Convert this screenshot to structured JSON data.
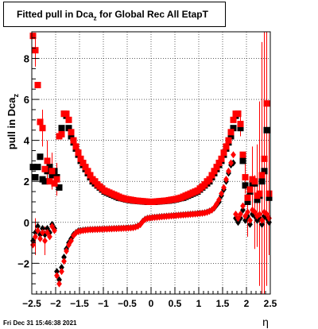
{
  "title": {
    "prefix": "Fitted pull in Dca",
    "subscript": "z",
    "suffix": " for Global Rec All EtapT"
  },
  "footer": "Fri Dec 31 15:46:38 2021",
  "chart_data": {
    "type": "scatter",
    "xlabel": "η",
    "ylabel": "pull in Dca",
    "ylabel_subscript": "z",
    "xlim": [
      -2.5,
      2.5
    ],
    "ylim": [
      -3.5,
      9.3
    ],
    "x_ticks": [
      "−2.5",
      "−2",
      "−1.5",
      "−1",
      "−0.5",
      "0",
      "0.5",
      "1",
      "1.5",
      "2",
      "2.5"
    ],
    "y_ticks": [
      "−2",
      "0",
      "2",
      "4",
      "6",
      "8"
    ],
    "grid": true,
    "series": [
      {
        "marker": "square",
        "color": "#000000",
        "x": [
          -2.475,
          -2.425,
          -2.375,
          -2.325,
          -2.275,
          -2.225,
          -2.175,
          -2.125,
          -2.075,
          -2.025,
          -1.975,
          -1.925,
          -1.875,
          -1.825,
          -1.775,
          -1.725,
          -1.675,
          -1.625,
          -1.575,
          -1.525,
          -1.475,
          -1.425,
          -1.375,
          -1.325,
          -1.275,
          -1.225,
          -1.175,
          -1.125,
          -1.075,
          -1.025,
          -0.975,
          -0.925,
          -0.875,
          -0.825,
          -0.775,
          -0.725,
          -0.675,
          -0.625,
          -0.575,
          -0.525,
          -0.475,
          -0.425,
          -0.375,
          -0.325,
          -0.275,
          -0.225,
          -0.175,
          -0.125,
          -0.075,
          -0.025,
          0.025,
          0.075,
          0.125,
          0.175,
          0.225,
          0.275,
          0.325,
          0.375,
          0.425,
          0.475,
          0.525,
          0.575,
          0.625,
          0.675,
          0.725,
          0.775,
          0.825,
          0.875,
          0.925,
          0.975,
          1.025,
          1.075,
          1.125,
          1.175,
          1.225,
          1.275,
          1.325,
          1.375,
          1.425,
          1.475,
          1.525,
          1.575,
          1.625,
          1.675,
          1.725,
          1.775,
          1.825,
          1.875,
          1.925,
          1.975,
          2.025,
          2.075,
          2.125,
          2.175,
          2.225,
          2.275,
          2.325,
          2.375,
          2.425,
          2.475
        ],
        "y": [
          2.7,
          2.2,
          2.7,
          3.2,
          2.1,
          2.0,
          2.5,
          2.7,
          2.3,
          2.5,
          2.2,
          1.7,
          4.6,
          5.3,
          5.2,
          4.6,
          4.2,
          3.9,
          3.6,
          3.3,
          3.0,
          2.8,
          2.6,
          2.4,
          2.2,
          2.0,
          1.9,
          1.8,
          1.7,
          1.6,
          1.5,
          1.45,
          1.4,
          1.35,
          1.3,
          1.25,
          1.2,
          1.18,
          1.15,
          1.12,
          1.1,
          1.08,
          1.06,
          1.05,
          1.04,
          1.03,
          1.02,
          1.01,
          1.0,
          1.0,
          1.0,
          1.0,
          1.01,
          1.02,
          1.03,
          1.04,
          1.05,
          1.06,
          1.08,
          1.1,
          1.12,
          1.15,
          1.18,
          1.2,
          1.25,
          1.3,
          1.35,
          1.4,
          1.45,
          1.5,
          1.6,
          1.7,
          1.8,
          1.9,
          2.0,
          2.2,
          2.4,
          2.6,
          2.8,
          3.0,
          3.3,
          3.6,
          3.9,
          4.2,
          4.6,
          5.2,
          5.3,
          4.6,
          3.0,
          1.8,
          1.0,
          1.5,
          1.9,
          1.9,
          1.1,
          1.3,
          2.0,
          2.5,
          4.5,
          1.2
        ]
      },
      {
        "marker": "square",
        "color": "#ff0000",
        "x": [
          -2.475,
          -2.425,
          -2.375,
          -2.325,
          -2.275,
          -2.225,
          -2.175,
          -2.125,
          -2.075,
          -2.025,
          -1.975,
          -1.925,
          -1.875,
          -1.825,
          -1.775,
          -1.725,
          -1.675,
          -1.625,
          -1.575,
          -1.525,
          -1.475,
          -1.425,
          -1.375,
          -1.325,
          -1.275,
          -1.225,
          -1.175,
          -1.125,
          -1.075,
          -1.025,
          -0.975,
          -0.925,
          -0.875,
          -0.825,
          -0.775,
          -0.725,
          -0.675,
          -0.625,
          -0.575,
          -0.525,
          -0.475,
          -0.425,
          -0.375,
          -0.325,
          -0.275,
          -0.225,
          -0.175,
          -0.125,
          -0.075,
          -0.025,
          0.025,
          0.075,
          0.125,
          0.175,
          0.225,
          0.275,
          0.325,
          0.375,
          0.425,
          0.475,
          0.525,
          0.575,
          0.625,
          0.675,
          0.725,
          0.775,
          0.825,
          0.875,
          0.925,
          0.975,
          1.025,
          1.075,
          1.125,
          1.175,
          1.225,
          1.275,
          1.325,
          1.375,
          1.425,
          1.475,
          1.525,
          1.575,
          1.625,
          1.675,
          1.725,
          1.775,
          1.825,
          1.875,
          1.925,
          1.975,
          2.025,
          2.075,
          2.125,
          2.175,
          2.225,
          2.275,
          2.325,
          2.375,
          2.425,
          2.475
        ],
        "y": [
          9.1,
          8.4,
          6.7,
          4.9,
          4.6,
          2.6,
          3.0,
          2.0,
          2.5,
          1.9,
          2.1,
          4.2,
          4.3,
          5.3,
          5.3,
          5.0,
          4.4,
          4.0,
          3.7,
          3.4,
          3.1,
          2.9,
          2.7,
          2.5,
          2.3,
          2.1,
          2.0,
          1.85,
          1.75,
          1.65,
          1.55,
          1.5,
          1.45,
          1.4,
          1.35,
          1.3,
          1.25,
          1.2,
          1.17,
          1.14,
          1.12,
          1.1,
          1.08,
          1.06,
          1.05,
          1.04,
          1.03,
          1.02,
          1.01,
          1.0,
          1.0,
          1.01,
          1.02,
          1.03,
          1.04,
          1.05,
          1.06,
          1.08,
          1.1,
          1.12,
          1.14,
          1.17,
          1.2,
          1.25,
          1.3,
          1.35,
          1.4,
          1.45,
          1.5,
          1.55,
          1.65,
          1.75,
          1.85,
          2.0,
          2.1,
          2.3,
          2.5,
          2.7,
          2.9,
          3.1,
          3.4,
          3.7,
          4.0,
          4.4,
          5.0,
          5.3,
          5.3,
          4.8,
          3.3,
          2.2,
          1.2,
          1.6,
          2.1,
          2.0,
          1.3,
          1.4,
          2.3,
          3.1,
          5.8,
          1.4
        ]
      },
      {
        "marker": "diamond",
        "color": "#000000",
        "x": [
          -2.475,
          -2.425,
          -2.375,
          -2.325,
          -2.275,
          -2.225,
          -2.175,
          -2.125,
          -2.075,
          -2.025,
          -1.975,
          -1.925,
          -1.875,
          -1.825,
          -1.775,
          -1.725,
          -1.675,
          -1.625,
          -1.575,
          -1.525,
          -1.475,
          -1.425,
          -1.375,
          -1.325,
          -1.275,
          -1.225,
          -1.175,
          -1.125,
          -1.075,
          -1.025,
          -0.975,
          -0.925,
          -0.875,
          -0.825,
          -0.775,
          -0.725,
          -0.675,
          -0.625,
          -0.575,
          -0.525,
          -0.475,
          -0.425,
          -0.375,
          -0.325,
          -0.275,
          -0.225,
          -0.175,
          -0.125,
          -0.075,
          -0.025,
          0.025,
          0.075,
          0.125,
          0.175,
          0.225,
          0.275,
          0.325,
          0.375,
          0.425,
          0.475,
          0.525,
          0.575,
          0.625,
          0.675,
          0.725,
          0.775,
          0.825,
          0.875,
          0.925,
          0.975,
          1.025,
          1.075,
          1.125,
          1.175,
          1.225,
          1.275,
          1.325,
          1.375,
          1.425,
          1.475,
          1.525,
          1.575,
          1.625,
          1.675,
          1.725,
          1.775,
          1.825,
          1.875,
          1.925,
          1.975,
          2.025,
          2.075,
          2.125,
          2.175,
          2.225,
          2.275,
          2.325,
          2.375,
          2.425,
          2.475
        ],
        "y": [
          -0.9,
          -0.5,
          -0.2,
          -0.6,
          -0.3,
          -0.6,
          -0.3,
          -0.5,
          -0.1,
          -0.3,
          -2.4,
          -2.8,
          -2.2,
          -1.7,
          -1.3,
          -1.0,
          -0.8,
          -0.6,
          -0.5,
          -0.42,
          -0.4,
          -0.38,
          -0.37,
          -0.36,
          -0.35,
          -0.35,
          -0.34,
          -0.34,
          -0.33,
          -0.33,
          -0.32,
          -0.32,
          -0.31,
          -0.31,
          -0.3,
          -0.3,
          -0.29,
          -0.29,
          -0.28,
          -0.28,
          -0.27,
          -0.26,
          -0.25,
          -0.22,
          -0.18,
          -0.1,
          0.05,
          0.15,
          0.2,
          0.22,
          0.24,
          0.25,
          0.26,
          0.27,
          0.28,
          0.29,
          0.3,
          0.31,
          0.32,
          0.33,
          0.34,
          0.35,
          0.36,
          0.37,
          0.38,
          0.39,
          0.4,
          0.41,
          0.42,
          0.43,
          0.44,
          0.45,
          0.47,
          0.5,
          0.55,
          0.6,
          0.7,
          0.85,
          1.0,
          1.3,
          1.6,
          2.0,
          2.4,
          2.8,
          2.9,
          0.2,
          0.0,
          0.2,
          0.6,
          0.1,
          0.3,
          -0.1,
          0.4,
          0.3,
          0.1,
          0.2,
          -0.1,
          0.3,
          0.2,
          0.0
        ]
      },
      {
        "marker": "diamond",
        "color": "#ff0000",
        "x": [
          -2.475,
          -2.425,
          -2.375,
          -2.325,
          -2.275,
          -2.225,
          -2.175,
          -2.125,
          -2.075,
          -2.025,
          -1.975,
          -1.925,
          -1.875,
          -1.825,
          -1.775,
          -1.725,
          -1.675,
          -1.625,
          -1.575,
          -1.525,
          -1.475,
          -1.425,
          -1.375,
          -1.325,
          -1.275,
          -1.225,
          -1.175,
          -1.125,
          -1.075,
          -1.025,
          -0.975,
          -0.925,
          -0.875,
          -0.825,
          -0.775,
          -0.725,
          -0.675,
          -0.625,
          -0.575,
          -0.525,
          -0.475,
          -0.425,
          -0.375,
          -0.325,
          -0.275,
          -0.225,
          -0.175,
          -0.125,
          -0.075,
          -0.025,
          0.025,
          0.075,
          0.125,
          0.175,
          0.225,
          0.275,
          0.325,
          0.375,
          0.425,
          0.475,
          0.525,
          0.575,
          0.625,
          0.675,
          0.725,
          0.775,
          0.825,
          0.875,
          0.925,
          0.975,
          1.025,
          1.075,
          1.125,
          1.175,
          1.225,
          1.275,
          1.325,
          1.375,
          1.425,
          1.475,
          1.525,
          1.575,
          1.625,
          1.675,
          1.725,
          1.775,
          1.825,
          1.875,
          1.925,
          1.975,
          2.025,
          2.075,
          2.125,
          2.175,
          2.225,
          2.275,
          2.325,
          2.375,
          2.425,
          2.475
        ],
        "y": [
          -1.1,
          -0.7,
          -0.4,
          -0.8,
          -0.5,
          -0.9,
          -0.5,
          -0.7,
          -0.2,
          -0.4,
          -2.6,
          -3.0,
          -2.4,
          -1.9,
          -1.4,
          -1.1,
          -0.9,
          -0.65,
          -0.52,
          -0.45,
          -0.42,
          -0.4,
          -0.38,
          -0.37,
          -0.36,
          -0.36,
          -0.35,
          -0.35,
          -0.34,
          -0.34,
          -0.33,
          -0.33,
          -0.32,
          -0.32,
          -0.31,
          -0.31,
          -0.3,
          -0.3,
          -0.29,
          -0.29,
          -0.28,
          -0.27,
          -0.26,
          -0.23,
          -0.19,
          -0.11,
          0.04,
          0.14,
          0.19,
          0.21,
          0.23,
          0.24,
          0.25,
          0.26,
          0.27,
          0.28,
          0.29,
          0.3,
          0.31,
          0.32,
          0.33,
          0.34,
          0.35,
          0.36,
          0.37,
          0.38,
          0.39,
          0.4,
          0.41,
          0.42,
          0.43,
          0.44,
          0.46,
          0.49,
          0.54,
          0.6,
          0.72,
          0.9,
          1.1,
          1.4,
          1.7,
          2.1,
          2.5,
          2.9,
          3.3,
          0.4,
          0.2,
          0.4,
          0.8,
          0.3,
          0.5,
          0.1,
          0.6,
          0.5,
          0.3,
          0.4,
          0.1,
          0.5,
          0.4,
          0.2
        ]
      }
    ],
    "error_bars": [
      {
        "x": -2.425,
        "y": 8.4,
        "err": 0.8
      },
      {
        "x": -2.275,
        "y": 4.6,
        "err": 0.9
      },
      {
        "x": -2.175,
        "y": 3.0,
        "err": 1.0
      },
      {
        "x": -2.075,
        "y": 2.5,
        "err": 0.9
      },
      {
        "x": -1.975,
        "y": 2.1,
        "err": 0.8
      },
      {
        "x": -2.425,
        "y": -0.7,
        "err": 0.9
      },
      {
        "x": -2.225,
        "y": -0.9,
        "err": 0.7
      },
      {
        "x": 1.875,
        "y": 4.8,
        "err": 0.6
      },
      {
        "x": 1.975,
        "y": 2.2,
        "err": 0.8
      },
      {
        "x": 2.125,
        "y": 2.1,
        "err": 1.6
      },
      {
        "x": 2.225,
        "y": 1.3,
        "err": 2.5
      },
      {
        "x": 2.275,
        "y": 1.4,
        "err": 4.5
      },
      {
        "x": 2.325,
        "y": 2.3,
        "err": 6.5
      },
      {
        "x": 2.375,
        "y": 3.1,
        "err": 7.0
      },
      {
        "x": 2.425,
        "y": 5.8,
        "err": 4.0
      },
      {
        "x": 2.475,
        "y": 1.4,
        "err": 3.0
      },
      {
        "x": 2.025,
        "y": 0.5,
        "err": 1.2
      },
      {
        "x": 2.175,
        "y": 0.5,
        "err": 1.8
      },
      {
        "x": 2.325,
        "y": 0.4,
        "err": 4.0
      },
      {
        "x": 2.425,
        "y": 0.4,
        "err": 3.5
      }
    ]
  }
}
